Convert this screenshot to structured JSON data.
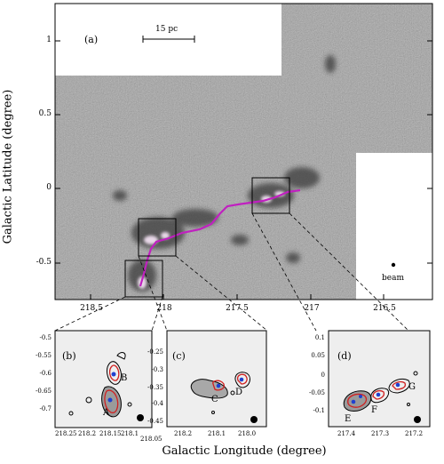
{
  "main_panel": {
    "label": "(a)",
    "scale_bar_label": "15 pc",
    "beam_label": "beam",
    "y_ticks": [
      "1",
      "0.5",
      "0",
      "-0.5"
    ],
    "x_ticks": [
      "218.5",
      "218",
      "217.5",
      "217",
      "216.5"
    ]
  },
  "inset_b": {
    "label": "(b)",
    "y_ticks": [
      "-0.5",
      "-0.55",
      "-0.6",
      "-0.65",
      "-0.7"
    ],
    "x_ticks": [
      "218.25",
      "218.2",
      "218.15",
      "218.1",
      "218.05"
    ],
    "clumps": [
      "A",
      "B"
    ]
  },
  "inset_c": {
    "label": "(c)",
    "y_ticks": [
      "-0.25",
      "-0.3",
      "-0.35",
      "-0.4",
      "-0.45"
    ],
    "x_ticks": [
      "218.2",
      "218.1",
      "218.0"
    ],
    "clumps": [
      "C",
      "D"
    ]
  },
  "inset_d": {
    "label": "(d)",
    "y_ticks": [
      "0.1",
      "0.05",
      "0",
      "-0.05",
      "-0.1"
    ],
    "x_ticks": [
      "217.4",
      "217.3",
      "217.2"
    ],
    "clumps": [
      "E",
      "F",
      "G"
    ]
  },
  "axes": {
    "ylabel": "Galactic Latitude (degree)",
    "xlabel": "Galactic Longitude (degree)"
  },
  "colors": {
    "background_map": "#8a8a8a",
    "filament": "#c020c0",
    "contour_red": "#d02020",
    "clump_blue": "#2040d0"
  }
}
